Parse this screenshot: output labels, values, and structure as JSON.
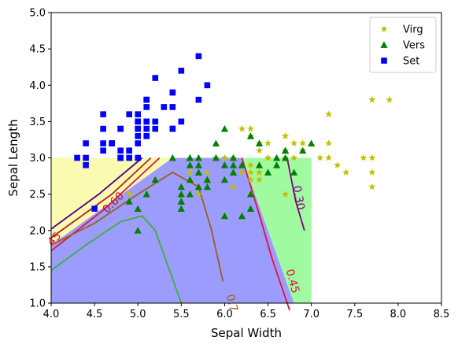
{
  "chart_data": {
    "type": "scatter",
    "xlabel": "Sepal Width",
    "ylabel": "Sepal Length",
    "xlim": [
      4.0,
      8.5
    ],
    "ylim": [
      1.0,
      5.0
    ],
    "xticks": [
      "4.0",
      "4.5",
      "5.0",
      "5.5",
      "6.0",
      "6.5",
      "7.0",
      "7.5",
      "8.0",
      "8.5"
    ],
    "yticks": [
      "1.0",
      "1.5",
      "2.0",
      "2.5",
      "3.0",
      "3.5",
      "4.0",
      "4.5",
      "5.0"
    ],
    "legend": {
      "placement": "top-right"
    },
    "regions": [
      {
        "class": "Set",
        "color": "#fafab0",
        "polygon": [
          [
            4.0,
            3.0
          ],
          [
            5.4,
            3.0
          ],
          [
            4.0,
            1.8
          ]
        ]
      },
      {
        "class": "Vers",
        "color": "#9c9cff",
        "polygon": [
          [
            5.4,
            3.0
          ],
          [
            6.2,
            3.0
          ],
          [
            6.8,
            1.0
          ],
          [
            4.0,
            1.0
          ],
          [
            4.0,
            1.8
          ]
        ]
      },
      {
        "class": "Virg",
        "color": "#a0fba0",
        "polygon": [
          [
            6.2,
            3.0
          ],
          [
            7.0,
            3.0
          ],
          [
            7.0,
            1.0
          ],
          [
            6.8,
            1.0
          ]
        ]
      }
    ],
    "series": [
      {
        "name": "Virg",
        "marker": "star",
        "color": "#bfbf00",
        "points": [
          [
            6.3,
            3.3
          ],
          [
            5.8,
            2.7
          ],
          [
            7.1,
            3.0
          ],
          [
            6.3,
            2.9
          ],
          [
            6.5,
            3.0
          ],
          [
            7.6,
            3.0
          ],
          [
            7.3,
            2.9
          ],
          [
            6.7,
            2.5
          ],
          [
            7.2,
            3.6
          ],
          [
            6.5,
            3.2
          ],
          [
            6.4,
            2.7
          ],
          [
            6.8,
            3.0
          ],
          [
            5.7,
            2.5
          ],
          [
            5.8,
            2.8
          ],
          [
            6.4,
            3.2
          ],
          [
            6.5,
            3.0
          ],
          [
            7.7,
            3.8
          ],
          [
            7.7,
            2.6
          ],
          [
            6.0,
            2.2
          ],
          [
            6.9,
            3.2
          ],
          [
            5.6,
            2.8
          ],
          [
            7.7,
            2.8
          ],
          [
            6.3,
            2.7
          ],
          [
            6.7,
            3.3
          ],
          [
            7.2,
            3.2
          ],
          [
            6.2,
            2.8
          ],
          [
            6.1,
            3.0
          ],
          [
            6.4,
            2.8
          ],
          [
            7.2,
            3.0
          ],
          [
            7.4,
            2.8
          ],
          [
            7.9,
            3.8
          ],
          [
            6.4,
            2.8
          ],
          [
            6.3,
            2.8
          ],
          [
            6.1,
            2.6
          ],
          [
            7.7,
            3.0
          ],
          [
            6.3,
            3.4
          ],
          [
            6.4,
            3.1
          ],
          [
            6.0,
            3.0
          ],
          [
            6.9,
            3.1
          ],
          [
            6.7,
            3.1
          ],
          [
            6.9,
            3.1
          ],
          [
            6.8,
            3.2
          ],
          [
            6.7,
            3.3
          ],
          [
            6.7,
            3.0
          ],
          [
            6.3,
            2.5
          ],
          [
            6.5,
            3.0
          ],
          [
            6.2,
            3.4
          ],
          [
            5.9,
            3.0
          ],
          [
            4.9,
            2.5
          ]
        ]
      },
      {
        "name": "Vers",
        "marker": "triangle",
        "color": "#008000",
        "points": [
          [
            7.0,
            3.2
          ],
          [
            6.4,
            3.2
          ],
          [
            6.9,
            3.1
          ],
          [
            5.5,
            2.3
          ],
          [
            6.5,
            2.8
          ],
          [
            5.7,
            2.8
          ],
          [
            6.3,
            3.3
          ],
          [
            4.9,
            2.4
          ],
          [
            6.6,
            2.9
          ],
          [
            5.2,
            2.7
          ],
          [
            5.0,
            2.0
          ],
          [
            5.9,
            3.0
          ],
          [
            6.0,
            2.2
          ],
          [
            6.1,
            2.9
          ],
          [
            5.6,
            2.9
          ],
          [
            6.7,
            3.1
          ],
          [
            5.6,
            3.0
          ],
          [
            5.8,
            2.7
          ],
          [
            6.2,
            2.2
          ],
          [
            5.6,
            2.5
          ],
          [
            5.9,
            3.2
          ],
          [
            6.1,
            2.8
          ],
          [
            6.3,
            2.5
          ],
          [
            6.1,
            2.8
          ],
          [
            6.4,
            2.9
          ],
          [
            6.6,
            3.0
          ],
          [
            6.8,
            2.8
          ],
          [
            6.7,
            3.0
          ],
          [
            6.0,
            2.9
          ],
          [
            5.7,
            2.6
          ],
          [
            5.5,
            2.4
          ],
          [
            5.5,
            2.4
          ],
          [
            5.8,
            2.7
          ],
          [
            6.0,
            2.7
          ],
          [
            5.4,
            3.0
          ],
          [
            6.0,
            3.4
          ],
          [
            6.7,
            3.1
          ],
          [
            6.3,
            2.3
          ],
          [
            5.6,
            3.0
          ],
          [
            5.5,
            2.5
          ],
          [
            5.5,
            2.6
          ],
          [
            6.1,
            3.0
          ],
          [
            5.8,
            2.6
          ],
          [
            5.0,
            2.3
          ],
          [
            5.6,
            2.7
          ],
          [
            5.7,
            3.0
          ],
          [
            5.7,
            2.9
          ],
          [
            6.2,
            2.9
          ],
          [
            5.1,
            2.5
          ],
          [
            5.7,
            2.8
          ]
        ]
      },
      {
        "name": "Set",
        "marker": "square",
        "color": "#0000ff",
        "points": [
          [
            5.1,
            3.5
          ],
          [
            4.9,
            3.0
          ],
          [
            4.7,
            3.2
          ],
          [
            4.6,
            3.1
          ],
          [
            5.0,
            3.6
          ],
          [
            5.4,
            3.9
          ],
          [
            4.6,
            3.4
          ],
          [
            5.0,
            3.4
          ],
          [
            4.4,
            2.9
          ],
          [
            4.9,
            3.1
          ],
          [
            5.4,
            3.7
          ],
          [
            4.8,
            3.4
          ],
          [
            4.8,
            3.0
          ],
          [
            4.3,
            3.0
          ],
          [
            5.8,
            4.0
          ],
          [
            5.7,
            4.4
          ],
          [
            5.4,
            3.9
          ],
          [
            5.1,
            3.5
          ],
          [
            5.7,
            3.8
          ],
          [
            5.1,
            3.8
          ],
          [
            5.4,
            3.4
          ],
          [
            5.1,
            3.7
          ],
          [
            4.6,
            3.6
          ],
          [
            5.1,
            3.3
          ],
          [
            4.8,
            3.4
          ],
          [
            5.0,
            3.0
          ],
          [
            5.0,
            3.4
          ],
          [
            5.2,
            3.5
          ],
          [
            5.2,
            3.4
          ],
          [
            4.7,
            3.2
          ],
          [
            4.8,
            3.1
          ],
          [
            5.4,
            3.4
          ],
          [
            5.2,
            4.1
          ],
          [
            5.5,
            4.2
          ],
          [
            4.9,
            3.1
          ],
          [
            5.0,
            3.2
          ],
          [
            5.5,
            3.5
          ],
          [
            4.9,
            3.6
          ],
          [
            4.4,
            3.0
          ],
          [
            5.1,
            3.4
          ],
          [
            5.0,
            3.5
          ],
          [
            4.5,
            2.3
          ],
          [
            4.4,
            3.2
          ],
          [
            5.0,
            3.5
          ],
          [
            5.1,
            3.8
          ],
          [
            4.8,
            3.0
          ],
          [
            5.1,
            3.8
          ],
          [
            4.6,
            3.2
          ],
          [
            5.3,
            3.7
          ],
          [
            5.0,
            3.3
          ]
        ]
      }
    ],
    "contours": [
      {
        "level": "0.30",
        "color": "#800080",
        "points": [
          [
            6.72,
            3.0
          ],
          [
            6.82,
            2.4
          ],
          [
            6.92,
            2.0
          ]
        ]
      },
      {
        "level": "0.45",
        "color": "#dc143c",
        "points": [
          [
            6.2,
            3.0
          ],
          [
            6.38,
            2.3
          ],
          [
            6.55,
            1.6
          ],
          [
            6.75,
            0.9
          ]
        ]
      },
      {
        "level": "0.45",
        "color": "#dc143c",
        "points": [
          [
            4.0,
            1.72
          ],
          [
            4.6,
            2.28
          ],
          [
            5.25,
            3.0
          ]
        ]
      },
      {
        "level": "0.60",
        "color": "#b22222",
        "points": [
          [
            4.0,
            1.9
          ],
          [
            4.7,
            2.5
          ],
          [
            5.15,
            3.0
          ]
        ]
      },
      {
        "level": "0.30",
        "color": "#4b0082",
        "points": [
          [
            4.0,
            2.02
          ],
          [
            4.55,
            2.5
          ],
          [
            5.05,
            3.0
          ]
        ]
      },
      {
        "level": "0.75",
        "color": "#9a6014",
        "points": [
          [
            4.0,
            1.8
          ],
          [
            4.5,
            2.1
          ],
          [
            5.0,
            2.5
          ],
          [
            5.4,
            2.8
          ],
          [
            5.7,
            2.6
          ],
          [
            5.85,
            2.0
          ],
          [
            5.98,
            1.3
          ]
        ]
      },
      {
        "level": "",
        "color": "#3cb030",
        "points": [
          [
            4.0,
            1.45
          ],
          [
            4.4,
            1.8
          ],
          [
            4.8,
            2.12
          ],
          [
            5.05,
            2.2
          ],
          [
            5.2,
            2.0
          ],
          [
            5.35,
            1.5
          ],
          [
            5.5,
            1.0
          ]
        ]
      }
    ],
    "contour_labels": [
      {
        "text": "0.30",
        "x": 6.85,
        "y": 2.45,
        "rotate": 80,
        "color": "#800080"
      },
      {
        "text": "0.45",
        "x": 6.78,
        "y": 1.3,
        "rotate": 75,
        "color": "#dc143c"
      },
      {
        "text": "0.60",
        "x": 4.72,
        "y": 2.38,
        "rotate": -45,
        "color": "#b22222"
      },
      {
        "text": "45",
        "x": 4.04,
        "y": 1.88,
        "rotate": -45,
        "color": "#dc143c"
      },
      {
        "text": "0.7",
        "x": 6.08,
        "y": 1.0,
        "rotate": 75,
        "color": "#9a6014"
      }
    ]
  }
}
